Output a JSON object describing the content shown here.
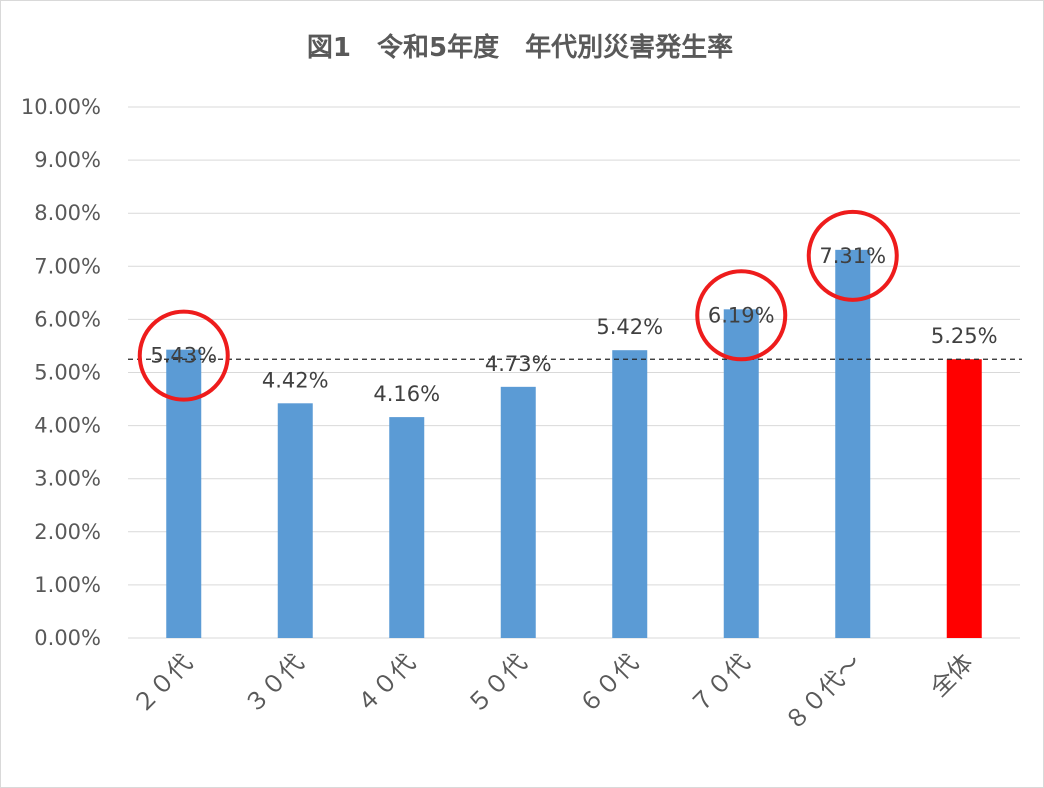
{
  "chart_data": {
    "type": "bar",
    "title": "図1　令和5年度　年代別災害発生率",
    "categories": [
      "２０代",
      "３０代",
      "４０代",
      "５０代",
      "６０代",
      "７０代",
      "８０代～",
      "全体"
    ],
    "values": [
      5.43,
      4.42,
      4.16,
      4.73,
      5.42,
      6.19,
      7.31,
      5.25
    ],
    "data_labels": [
      "5.43%",
      "4.42%",
      "4.16%",
      "4.73%",
      "5.42%",
      "6.19%",
      "7.31%",
      "5.25%"
    ],
    "highlight_category": "全体",
    "circled_categories": [
      "２０代",
      "７０代",
      "８０代～"
    ],
    "reference_line": 5.25,
    "ylim": [
      0,
      10
    ],
    "yticks": [
      0,
      1,
      2,
      3,
      4,
      5,
      6,
      7,
      8,
      9,
      10
    ],
    "ytick_labels": [
      "0.00%",
      "1.00%",
      "2.00%",
      "3.00%",
      "4.00%",
      "5.00%",
      "6.00%",
      "7.00%",
      "8.00%",
      "9.00%",
      "10.00%"
    ],
    "grid": true,
    "legend": "none",
    "colors": {
      "bar": "#5b9bd5",
      "highlight": "#ff0000",
      "circle": "#ee1c1c",
      "grid": "#d9d9d9",
      "text": "#595959",
      "reference_line": "#262626"
    }
  }
}
